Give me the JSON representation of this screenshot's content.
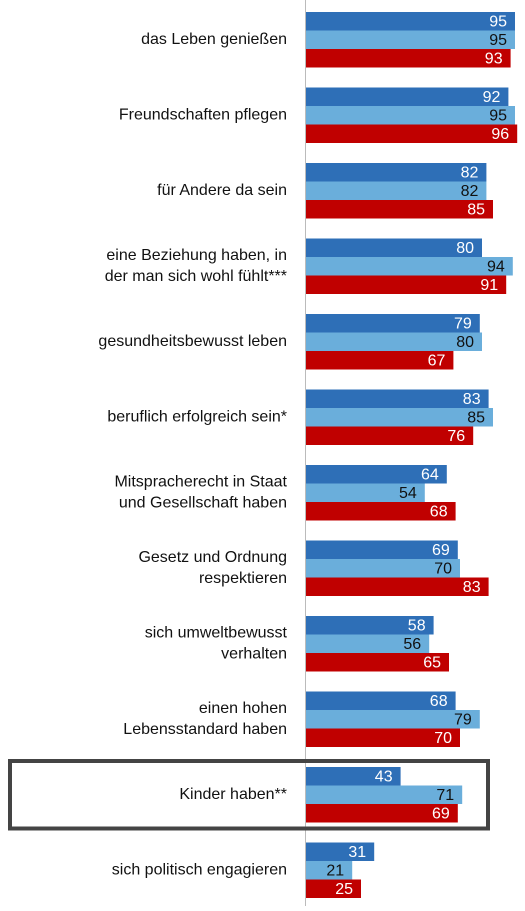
{
  "chart_data": {
    "type": "bar",
    "orientation": "horizontal",
    "categories": [
      [
        "das Leben genießen"
      ],
      [
        "Freundschaften pflegen"
      ],
      [
        "für Andere da sein"
      ],
      [
        "eine Beziehung haben, in",
        "der man sich wohl fühlt***"
      ],
      [
        "gesundheitsbewusst leben"
      ],
      [
        "beruflich erfolgreich sein*"
      ],
      [
        "Mitspracherecht in Staat",
        "und Gesellschaft haben"
      ],
      [
        "Gesetz und Ordnung",
        "respektieren"
      ],
      [
        "sich umweltbewusst",
        "verhalten"
      ],
      [
        "einen hohen",
        "Lebensstandard haben"
      ],
      [
        "Kinder haben**"
      ],
      [
        "sich politisch engagieren"
      ]
    ],
    "series": [
      {
        "color": "#2e6fb7",
        "label_color": "#ffffff",
        "values": [
          95,
          92,
          82,
          80,
          79,
          83,
          64,
          69,
          58,
          68,
          43,
          31
        ]
      },
      {
        "color": "#6aaedb",
        "label_color": "#111111",
        "values": [
          95,
          95,
          82,
          94,
          80,
          85,
          54,
          70,
          56,
          79,
          71,
          21
        ]
      },
      {
        "color": "#c00000",
        "label_color": "#ffffff",
        "values": [
          93,
          96,
          85,
          91,
          67,
          76,
          68,
          83,
          65,
          70,
          69,
          25
        ]
      }
    ],
    "xlim": [
      0,
      100
    ],
    "highlight": 10
  }
}
